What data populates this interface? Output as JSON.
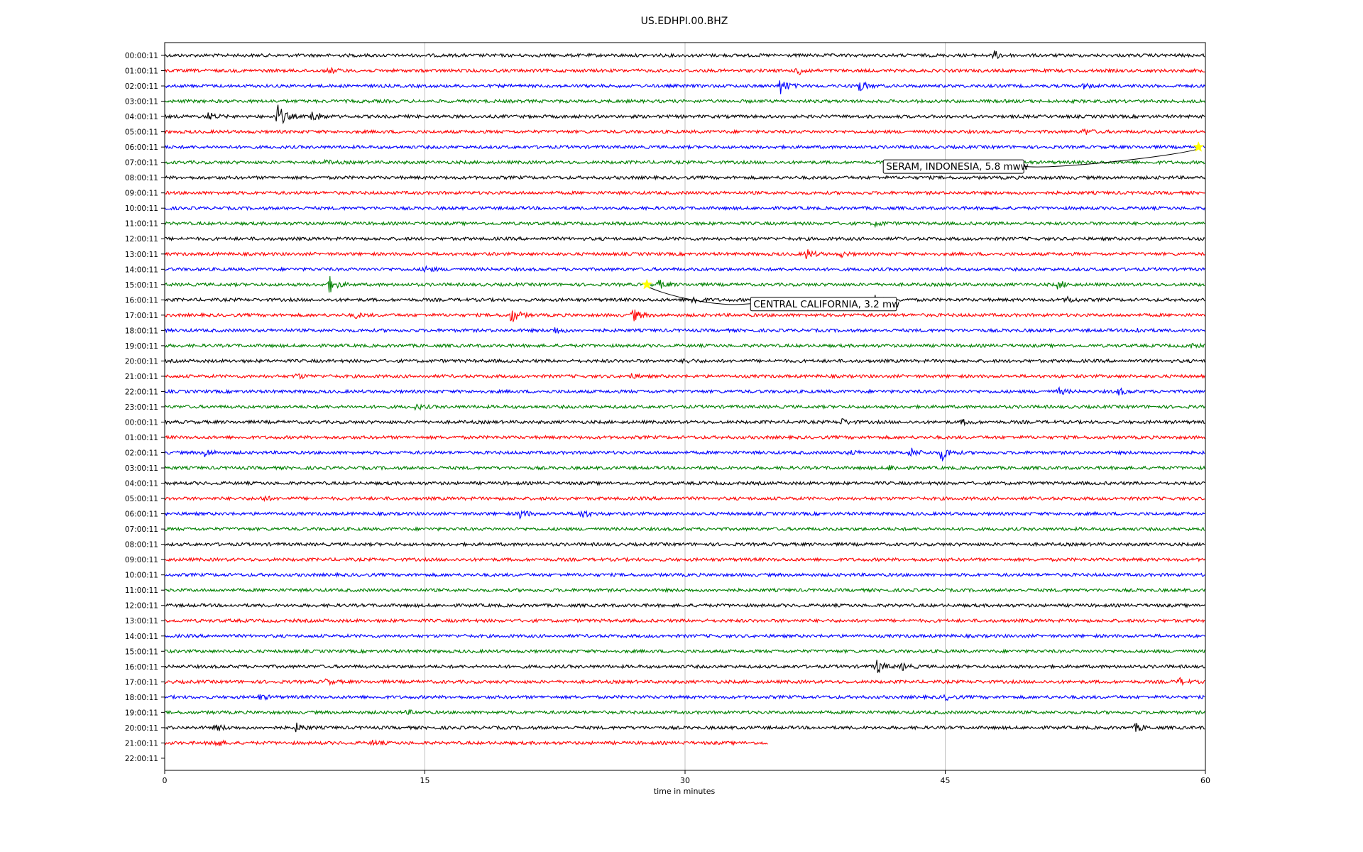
{
  "chart_data": {
    "type": "line",
    "title": "US.EDHPI.00.BHZ",
    "xlabel": "time in minutes",
    "ylabel": "",
    "xlim": [
      0,
      60
    ],
    "x_ticks": [
      "0",
      "15",
      "30",
      "45",
      "60"
    ],
    "grid": "vertical",
    "trace_colors": [
      "#000000",
      "#ff0000",
      "#0000ff",
      "#008000"
    ],
    "rows": [
      {
        "label": "00:00:11",
        "end": 60,
        "events": [
          [
            47.8,
            0.5
          ]
        ]
      },
      {
        "label": "01:00:11",
        "end": 60,
        "events": [
          [
            9.5,
            0.3
          ],
          [
            36.5,
            0.6
          ]
        ]
      },
      {
        "label": "02:00:11",
        "end": 60,
        "events": [
          [
            35.5,
            1.0
          ],
          [
            40,
            0.8
          ],
          [
            53,
            0.3
          ]
        ]
      },
      {
        "label": "03:00:11",
        "end": 60,
        "events": []
      },
      {
        "label": "04:00:11",
        "end": 60,
        "events": [
          [
            2.5,
            0.5
          ],
          [
            6.5,
            1.6
          ],
          [
            8.5,
            0.8
          ]
        ]
      },
      {
        "label": "05:00:11",
        "end": 60,
        "events": [
          [
            53,
            0.4
          ]
        ]
      },
      {
        "label": "06:00:11",
        "end": 60,
        "events": []
      },
      {
        "label": "07:00:11",
        "end": 60,
        "events": [
          [
            9.3,
            0.2
          ]
        ]
      },
      {
        "label": "08:00:11",
        "end": 60,
        "events": []
      },
      {
        "label": "09:00:11",
        "end": 60,
        "events": []
      },
      {
        "label": "10:00:11",
        "end": 60,
        "events": []
      },
      {
        "label": "11:00:11",
        "end": 60,
        "events": [
          [
            41,
            0.3
          ]
        ]
      },
      {
        "label": "12:00:11",
        "end": 60,
        "events": []
      },
      {
        "label": "13:00:11",
        "end": 60,
        "events": [
          [
            37,
            0.6
          ],
          [
            39,
            0.3
          ]
        ]
      },
      {
        "label": "14:00:11",
        "end": 60,
        "events": [
          [
            15,
            0.4
          ]
        ]
      },
      {
        "label": "15:00:11",
        "end": 60,
        "events": [
          [
            9.5,
            1.0
          ],
          [
            28.5,
            0.5
          ],
          [
            51.5,
            0.5
          ]
        ]
      },
      {
        "label": "16:00:11",
        "end": 60,
        "events": [
          [
            30.5,
            0.6
          ],
          [
            41,
            0.8
          ],
          [
            52,
            0.4
          ]
        ]
      },
      {
        "label": "17:00:11",
        "end": 60,
        "events": [
          [
            20,
            1.0
          ],
          [
            27,
            0.8
          ],
          [
            11,
            0.3
          ]
        ]
      },
      {
        "label": "18:00:11",
        "end": 60,
        "events": [
          [
            22.5,
            0.4
          ],
          [
            56,
            0.3
          ]
        ]
      },
      {
        "label": "19:00:11",
        "end": 60,
        "events": [
          [
            59,
            0.3
          ]
        ]
      },
      {
        "label": "20:00:11",
        "end": 60,
        "events": [
          [
            30,
            0.3
          ]
        ]
      },
      {
        "label": "21:00:11",
        "end": 60,
        "events": [
          [
            7.6,
            0.3
          ],
          [
            26.8,
            0.3
          ]
        ]
      },
      {
        "label": "22:00:11",
        "end": 60,
        "events": [
          [
            51.5,
            0.4
          ],
          [
            55,
            0.4
          ]
        ]
      },
      {
        "label": "23:00:11",
        "end": 60,
        "events": [
          [
            14.5,
            0.3
          ]
        ]
      },
      {
        "label": "00:00:11",
        "end": 60,
        "events": [
          [
            39,
            0.4
          ],
          [
            46,
            0.3
          ]
        ]
      },
      {
        "label": "01:00:11",
        "end": 60,
        "events": []
      },
      {
        "label": "02:00:11",
        "end": 60,
        "events": [
          [
            2.3,
            0.5
          ],
          [
            43,
            0.6
          ],
          [
            44.8,
            1.0
          ],
          [
            39.5,
            0.3
          ]
        ]
      },
      {
        "label": "03:00:11",
        "end": 60,
        "events": [
          [
            41.8,
            0.3
          ]
        ]
      },
      {
        "label": "04:00:11",
        "end": 60,
        "events": []
      },
      {
        "label": "05:00:11",
        "end": 60,
        "events": [
          [
            5.6,
            0.3
          ]
        ]
      },
      {
        "label": "06:00:11",
        "end": 60,
        "events": [
          [
            20.5,
            0.6
          ],
          [
            24,
            0.6
          ]
        ]
      },
      {
        "label": "07:00:11",
        "end": 60,
        "events": []
      },
      {
        "label": "08:00:11",
        "end": 60,
        "events": []
      },
      {
        "label": "09:00:11",
        "end": 60,
        "events": []
      },
      {
        "label": "10:00:11",
        "end": 60,
        "events": []
      },
      {
        "label": "11:00:11",
        "end": 60,
        "events": []
      },
      {
        "label": "12:00:11",
        "end": 60,
        "events": []
      },
      {
        "label": "13:00:11",
        "end": 60,
        "events": []
      },
      {
        "label": "14:00:11",
        "end": 60,
        "events": []
      },
      {
        "label": "15:00:11",
        "end": 60,
        "events": []
      },
      {
        "label": "16:00:11",
        "end": 60,
        "events": [
          [
            41,
            1.0
          ],
          [
            42.5,
            0.4
          ]
        ]
      },
      {
        "label": "17:00:11",
        "end": 60,
        "events": [
          [
            9.3,
            0.3
          ],
          [
            58.5,
            0.4
          ]
        ]
      },
      {
        "label": "18:00:11",
        "end": 60,
        "events": [
          [
            5.5,
            0.3
          ],
          [
            45,
            0.3
          ]
        ]
      },
      {
        "label": "19:00:11",
        "end": 60,
        "events": [
          [
            14,
            0.2
          ]
        ]
      },
      {
        "label": "20:00:11",
        "end": 60,
        "events": [
          [
            3,
            0.4
          ],
          [
            7.6,
            0.5
          ],
          [
            56,
            0.5
          ]
        ]
      },
      {
        "label": "21:00:11",
        "end": 34.8,
        "events": [
          [
            2.8,
            0.7
          ],
          [
            12,
            0.3
          ]
        ]
      },
      {
        "label": "22:00:11",
        "end": 0,
        "events": []
      }
    ],
    "annotations": [
      {
        "text": "SERAM, INDONESIA, 5.8 mww",
        "row": 6,
        "x": 59.6
      },
      {
        "text": "CENTRAL CALIFORNIA, 3.2 mw",
        "row": 15,
        "x": 27.8
      }
    ],
    "marker_color": "#ffff00"
  }
}
